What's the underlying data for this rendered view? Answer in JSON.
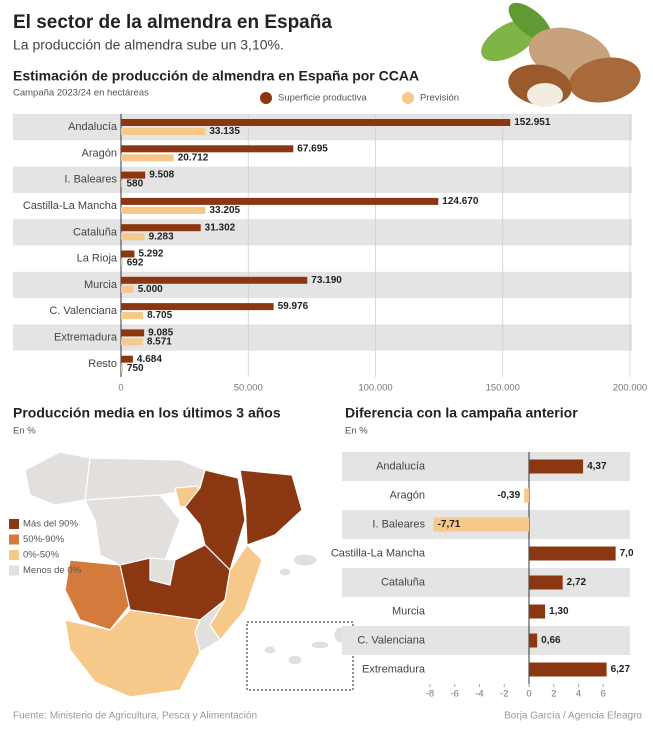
{
  "header": {
    "title": "El sector de la almendra en España",
    "subtitle": "La producción de almendra sube un 3,10%."
  },
  "chart_data": [
    {
      "type": "bar",
      "orientation": "horizontal",
      "title": "Estimación de producción de almendra en España por CCAA",
      "subtitle": "Campaña 2023/24 en hectáreas",
      "categories": [
        "Andalucía",
        "Aragón",
        "I. Baleares",
        "Castilla-La Mancha",
        "Cataluña",
        "La Rioja",
        "Murcia",
        "C. Valenciana",
        "Extremadura",
        "Resto"
      ],
      "series": [
        {
          "name": "Superficie productiva",
          "color": "#8b3812",
          "values": [
            152951,
            67695,
            9508,
            124670,
            31302,
            5292,
            73190,
            59976,
            9085,
            4684
          ],
          "value_labels": [
            "152.951",
            "67.695",
            "9.508",
            "124.670",
            "31.302",
            "5.292",
            "73.190",
            "59.976",
            "9.085",
            "4.684"
          ]
        },
        {
          "name": "Previsión",
          "color": "#f6c889",
          "values": [
            33135,
            20712,
            580,
            33205,
            9283,
            692,
            5000,
            8705,
            8571,
            750
          ],
          "value_labels": [
            "33.135",
            "20.712",
            "580",
            "33.205",
            "9.283",
            "692",
            "5.000",
            "8.705",
            "8.571",
            "750"
          ]
        }
      ],
      "xlim": [
        0,
        200000
      ],
      "xticks": [
        0,
        {
          "value": 50000,
          "label": "50.000"
        },
        {
          "value": 100000,
          "label": "100.000"
        },
        {
          "value": 150000,
          "label": "150.000"
        },
        {
          "value": 200000,
          "label": "200.000"
        }
      ],
      "grid": true,
      "legend": "top"
    },
    {
      "type": "bar",
      "orientation": "horizontal",
      "title": "Diferencia con la campaña anterior",
      "subtitle": "En %",
      "categories": [
        "Andalucía",
        "Aragón",
        "I. Baleares",
        "Castilla-La Mancha",
        "Cataluña",
        "Murcia",
        "C. Valenciana",
        "Extremadura"
      ],
      "values": [
        4.37,
        -0.39,
        -7.71,
        7.0,
        2.72,
        1.3,
        0.66,
        6.27
      ],
      "value_labels": [
        "4,37",
        "-0,39",
        "-7,71",
        "7,0",
        "2,72",
        "1,30",
        "0,66",
        "6,27"
      ],
      "color": "#8b3812",
      "negative_color": "#f6c889",
      "xlim": [
        -8,
        8
      ],
      "xticks": [
        -8,
        -6,
        -4,
        -2,
        0,
        2,
        4,
        6
      ],
      "grid": false
    }
  ],
  "map": {
    "title": "Producción media en los últimos 3 años",
    "subtitle": "En %",
    "legend": [
      {
        "label": "Más del 90%",
        "color": "#8b3812"
      },
      {
        "label": "50%-90%",
        "color": "#d47a3c"
      },
      {
        "label": "0%-50%",
        "color": "#f6c889"
      },
      {
        "label": "Menos de 0%",
        "color": "#e2dfdc"
      }
    ]
  },
  "footer": {
    "source": "Fuente: Ministerio de Agricultura, Pesca y Alimentación",
    "credit": "Borja García / Agencia Efeagro"
  }
}
